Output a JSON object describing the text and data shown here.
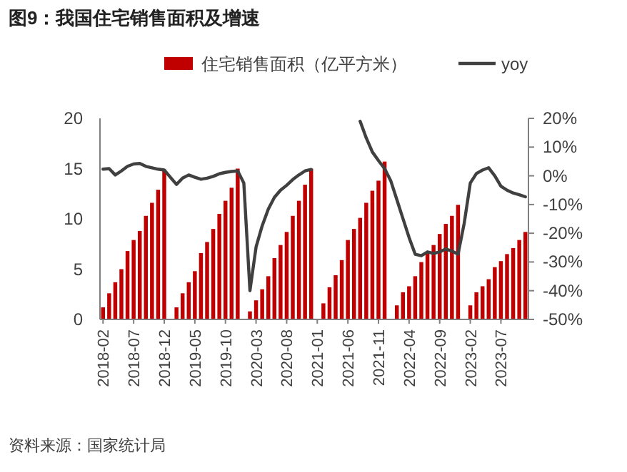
{
  "chart_data": {
    "type": "bar",
    "title": "图9：我国住宅销售面积及增速",
    "categories": [
      "2018-02",
      null,
      null,
      null,
      null,
      "2018-07",
      null,
      null,
      null,
      null,
      "2018-12",
      null,
      null,
      null,
      null,
      "2019-05",
      null,
      null,
      null,
      null,
      "2019-10",
      null,
      null,
      null,
      null,
      "2020-03",
      null,
      null,
      null,
      null,
      "2020-08",
      null,
      null,
      null,
      null,
      "2021-01",
      null,
      null,
      null,
      null,
      "2021-06",
      null,
      null,
      null,
      null,
      "2021-11",
      null,
      null,
      null,
      null,
      "2022-04",
      null,
      null,
      null,
      null,
      "2022-09",
      null,
      null,
      null,
      null,
      "2023-02",
      null,
      null,
      null,
      null,
      "2023-07",
      null,
      null,
      null,
      null
    ],
    "series": [
      {
        "name": "住宅销售面积（亿平方米）",
        "color": "#c00000",
        "values": [
          1.2,
          2.6,
          3.7,
          5.0,
          6.8,
          7.9,
          8.8,
          10.3,
          11.6,
          12.9,
          14.9,
          null,
          1.2,
          2.6,
          3.7,
          4.8,
          6.6,
          7.7,
          9.0,
          10.5,
          11.8,
          13.1,
          15.0,
          null,
          0.8,
          1.9,
          3.0,
          4.3,
          6.1,
          7.4,
          8.7,
          10.3,
          11.8,
          13.4,
          15.0,
          null,
          1.6,
          3.2,
          4.4,
          5.9,
          7.9,
          9.0,
          10.1,
          11.6,
          12.8,
          13.8,
          15.7,
          null,
          1.4,
          2.7,
          3.3,
          4.3,
          5.7,
          6.6,
          7.4,
          8.5,
          9.5,
          10.3,
          11.4,
          null,
          1.4,
          2.7,
          3.3,
          4.0,
          5.2,
          5.8,
          6.5,
          7.1,
          7.9,
          8.7
        ]
      },
      {
        "name": "yoy",
        "type": "line",
        "axis": "y2",
        "color": "#404040",
        "values": [
          2.3,
          2.5,
          0.3,
          1.7,
          3.3,
          4.1,
          4.3,
          3.3,
          2.8,
          2.3,
          2.0,
          -0.5,
          -3.0,
          -0.8,
          0.3,
          -0.5,
          -1.2,
          -0.8,
          -0.2,
          0.7,
          1.2,
          1.5,
          1.7,
          -2.5,
          -40,
          -24.8,
          -17.4,
          -11.6,
          -7.5,
          -5.0,
          -3.3,
          -1.3,
          0.3,
          1.7,
          2.2,
          null,
          null,
          null,
          null,
          null,
          null,
          null,
          19.0,
          13.2,
          8.3,
          5.3,
          2.5,
          -1.7,
          -8.3,
          -14.9,
          -21.5,
          -27.3,
          -27.8,
          -26.5,
          -27.0,
          -26.5,
          -25.5,
          -26.2,
          -27.3,
          -16.6,
          -2.5,
          0.8,
          2.0,
          2.8,
          0,
          -3.6,
          -5.0,
          -6.0,
          -6.6,
          -7.3
        ]
      }
    ],
    "ylim": [
      0,
      20
    ],
    "yticks": [
      0,
      5,
      10,
      15,
      20
    ],
    "y2lim": [
      -50,
      20
    ],
    "y2ticks": [
      {
        "value": -50,
        "label": "-50%"
      },
      {
        "value": -40,
        "label": "-40%"
      },
      {
        "value": -30,
        "label": "-30%"
      },
      {
        "value": -20,
        "label": "-20%"
      },
      {
        "value": -10,
        "label": "-10%"
      },
      {
        "value": 0,
        "label": "0%"
      },
      {
        "value": 10,
        "label": "10%"
      },
      {
        "value": 20,
        "label": "20%"
      }
    ],
    "legend": "top",
    "grid": false,
    "marker": "none",
    "annotations": [
      "资料来源：国家统计局"
    ]
  }
}
